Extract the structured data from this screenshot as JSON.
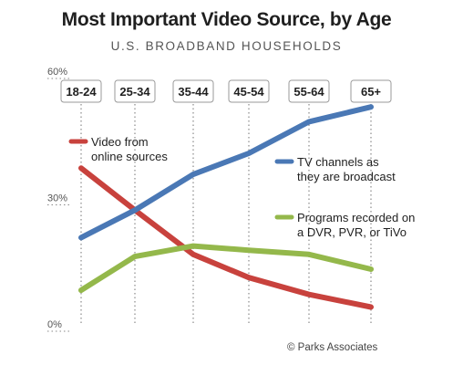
{
  "chart_data": {
    "type": "line",
    "title": "Most Important Video Source, by Age",
    "subtitle": "U.S. BROADBAND HOUSEHOLDS",
    "categories": [
      "18-24",
      "25-34",
      "35-44",
      "45-54",
      "55-64",
      "65+"
    ],
    "y_ticks": [
      "60%",
      "30%",
      "0%"
    ],
    "ylim": [
      0,
      60
    ],
    "series": [
      {
        "name": "Video from online sources",
        "label_lines": [
          "Video from",
          "online sources"
        ],
        "color": "#c8423d",
        "values": [
          37,
          27,
          16.5,
          11,
          7,
          4
        ]
      },
      {
        "name": "TV channels as they are broadcast",
        "label_lines": [
          "TV channels as",
          "they are broadcast"
        ],
        "color": "#4a78b5",
        "values": [
          20.5,
          27,
          35.5,
          40.5,
          48,
          51.5
        ]
      },
      {
        "name": "Programs recorded on a DVR, PVR, or TiVo",
        "label_lines": [
          "Programs recorded on",
          "a DVR, PVR, or TiVo"
        ],
        "color": "#94b84b",
        "values": [
          8,
          16,
          18.5,
          17.5,
          16.5,
          13
        ]
      }
    ],
    "credit": "© Parks Associates",
    "grid": "dotted vertical lines at each age group"
  }
}
